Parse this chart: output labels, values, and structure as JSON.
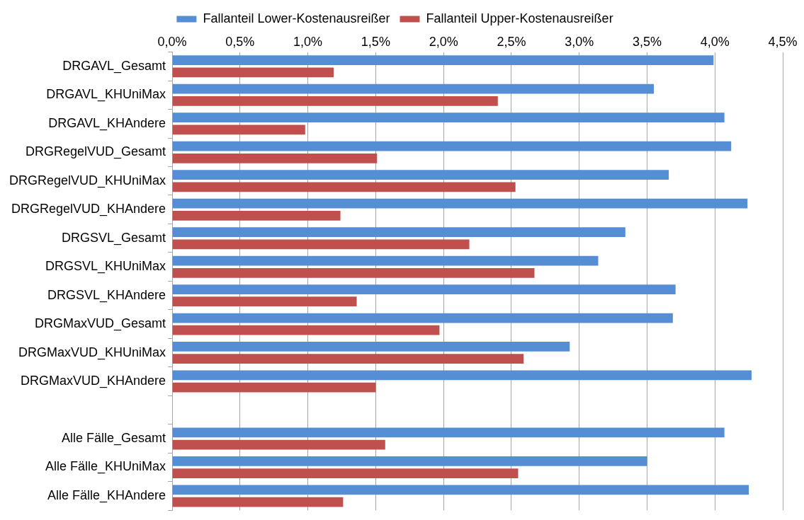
{
  "chart_data": {
    "type": "bar",
    "orientation": "horizontal",
    "categories": [
      "DRGAVL_Gesamt",
      "DRGAVL_KHUniMax",
      "DRGAVL_KHAndere",
      "DRGRegelVUD_Gesamt",
      "DRGRegelVUD_KHUniMax",
      "DRGRegelVUD_KHAndere",
      "DRGSVL_Gesamt",
      "DRGSVL_KHUniMax",
      "DRGSVL_KHAndere",
      "DRGMaxVUD_Gesamt",
      "DRGMaxVUD_KHUniMax",
      "DRGMaxVUD_KHAndere",
      null,
      "Alle Fälle_Gesamt",
      "Alle Fälle_KHUniMax",
      "Alle Fälle_KHAndere"
    ],
    "series": [
      {
        "name": "Fallanteil Lower-Kostenausreißer",
        "color": "#558ed5",
        "values": [
          3.99,
          3.55,
          4.07,
          4.12,
          3.66,
          4.24,
          3.34,
          3.14,
          3.71,
          3.69,
          2.93,
          4.27,
          null,
          4.07,
          3.5,
          4.25
        ]
      },
      {
        "name": "Fallanteil Upper-Kostenausreißer",
        "color": "#c0504d",
        "values": [
          1.19,
          2.4,
          0.98,
          1.51,
          2.53,
          1.24,
          2.19,
          2.67,
          1.36,
          1.97,
          2.59,
          1.5,
          null,
          1.57,
          2.55,
          1.26
        ]
      }
    ],
    "xlim": [
      0,
      4.5
    ],
    "xticks": [
      {
        "value": 0,
        "label": "0,0%"
      },
      {
        "value": 0.5,
        "label": "0,5%"
      },
      {
        "value": 1,
        "label": "1,0%"
      },
      {
        "value": 1.5,
        "label": "1,5%"
      },
      {
        "value": 2,
        "label": "2,0%"
      },
      {
        "value": 2.5,
        "label": "2,5%"
      },
      {
        "value": 3,
        "label": "3,0%"
      },
      {
        "value": 3.5,
        "label": "3,5%"
      },
      {
        "value": 4,
        "label": "4,0%"
      },
      {
        "value": 4.5,
        "label": "4,5%"
      }
    ],
    "grid": "x",
    "legend": "top"
  }
}
